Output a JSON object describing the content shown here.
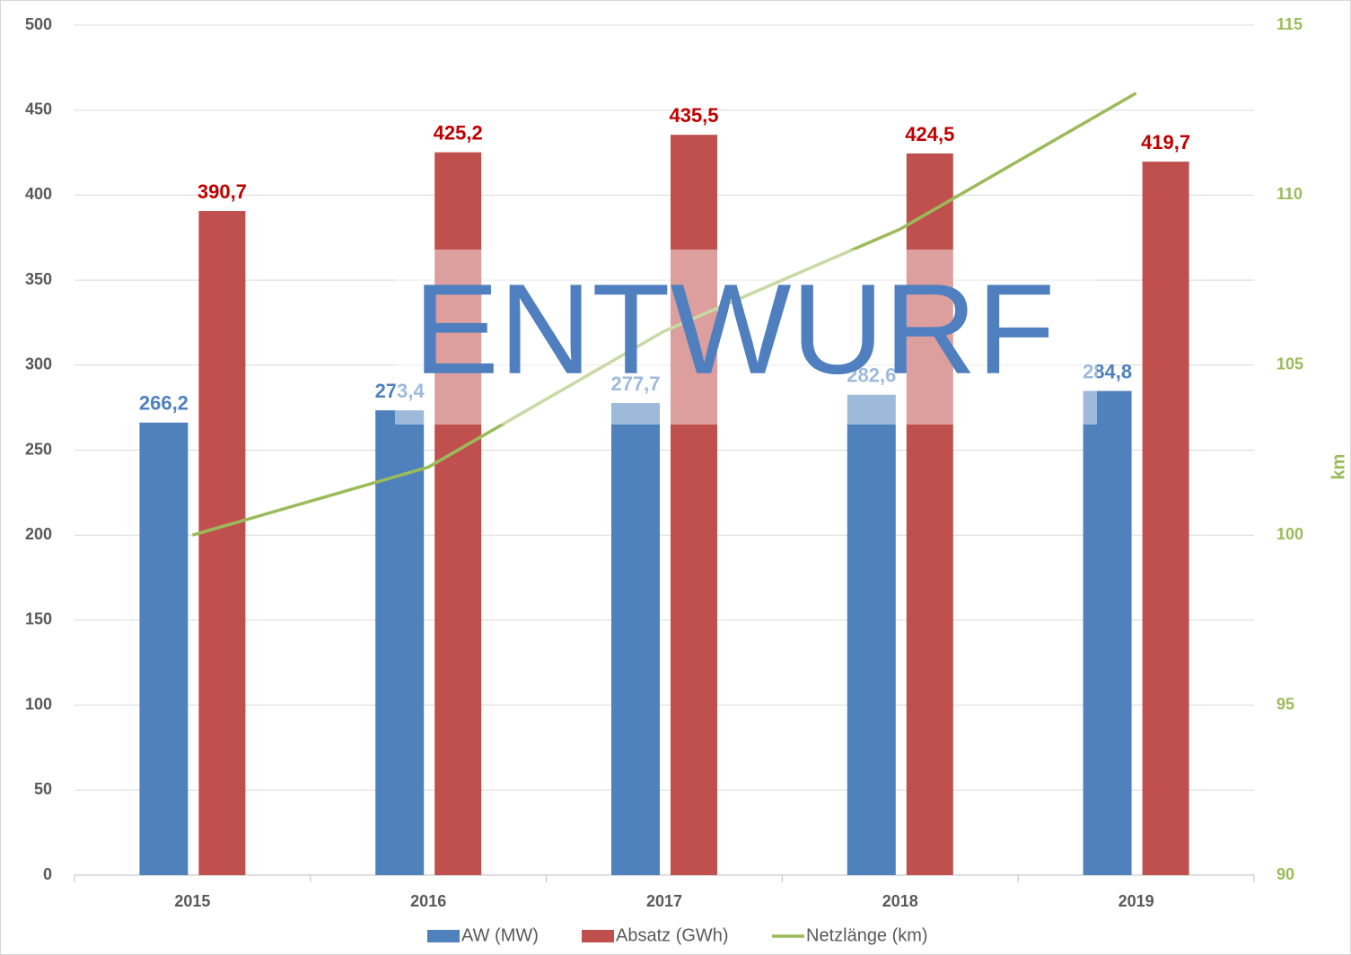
{
  "chart_data": {
    "type": "bar",
    "categories": [
      "2015",
      "2016",
      "2017",
      "2018",
      "2019"
    ],
    "series": [
      {
        "name": "AW (MW)",
        "color": "#4f81bd",
        "type": "bar",
        "values": [
          266.2,
          273.4,
          277.7,
          282.6,
          284.8
        ],
        "value_labels": [
          "266,2",
          "273,4",
          "277,7",
          "282,6",
          "284,8"
        ]
      },
      {
        "name": "Absatz (GWh)",
        "color": "#c0504d",
        "type": "bar",
        "values": [
          390.7,
          425.2,
          435.5,
          424.5,
          419.7
        ],
        "value_labels": [
          "390,7",
          "425,2",
          "435,5",
          "424,5",
          "419,7"
        ]
      },
      {
        "name": "Netzlänge (km)",
        "color": "#9bbb59",
        "type": "line",
        "axis": "y2",
        "values": [
          100,
          102,
          106,
          109,
          113
        ]
      }
    ],
    "ylim": [
      0,
      500
    ],
    "yticks": [
      0,
      50,
      100,
      150,
      200,
      250,
      300,
      350,
      400,
      450,
      500
    ],
    "y2lim": [
      90,
      115
    ],
    "y2ticks": [
      90,
      95,
      100,
      105,
      110,
      115
    ],
    "y2label": "km",
    "grid": true,
    "legend": "bottom",
    "watermark": "ENTWURF"
  }
}
